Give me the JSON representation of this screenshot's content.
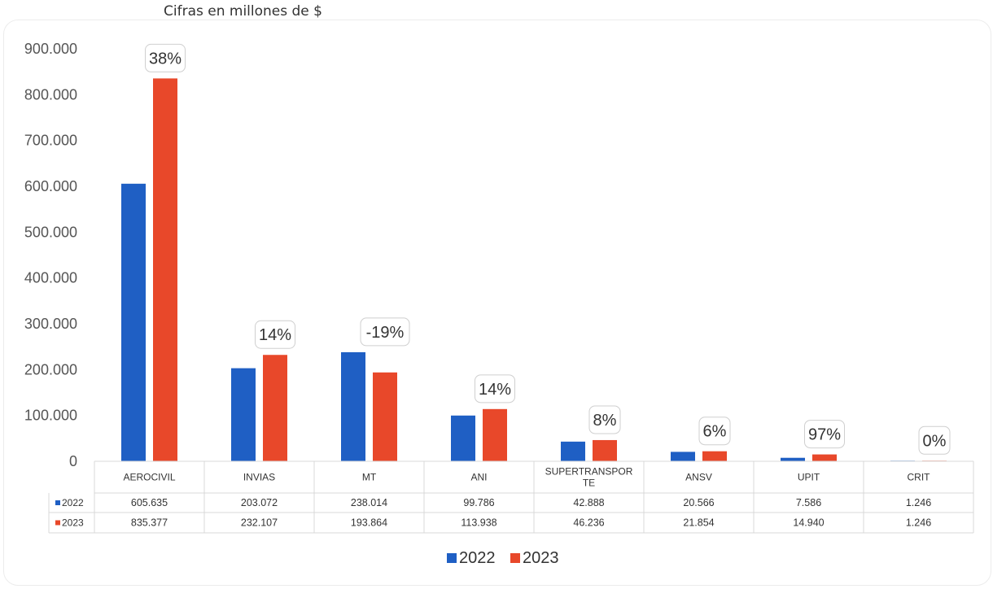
{
  "chart_data": {
    "type": "bar",
    "subtitle": "Cifras en millones de $",
    "categories": [
      "AEROCIVIL",
      "INVIAS",
      "MT",
      "ANI",
      "SUPERTRANSPORTE",
      "ANSV",
      "UPIT",
      "CRIT"
    ],
    "category_lines": [
      [
        "AEROCIVIL"
      ],
      [
        "INVIAS"
      ],
      [
        "MT"
      ],
      [
        "ANI"
      ],
      [
        "SUPERTRANSPOR",
        "TE"
      ],
      [
        "ANSV"
      ],
      [
        "UPIT"
      ],
      [
        "CRIT"
      ]
    ],
    "series": [
      {
        "name": "2022",
        "color": "#1f5fc4",
        "values": [
          605635,
          203072,
          238014,
          99786,
          42888,
          20566,
          7586,
          1246
        ],
        "labels": [
          "605.635",
          "203.072",
          "238.014",
          "99.786",
          "42.888",
          "20.566",
          "7.586",
          "1.246"
        ]
      },
      {
        "name": "2023",
        "color": "#e8482a",
        "values": [
          835377,
          232107,
          193864,
          113938,
          46236,
          21854,
          14940,
          1246
        ],
        "labels": [
          "835.377",
          "232.107",
          "193.864",
          "113.938",
          "46.236",
          "21.854",
          "14.940",
          "1.246"
        ]
      }
    ],
    "change_labels": [
      "38%",
      "14%",
      "-19%",
      "14%",
      "8%",
      "6%",
      "97%",
      "0%"
    ],
    "ylim": [
      0,
      900000
    ],
    "yticks": [
      {
        "value": 0,
        "label": "0"
      },
      {
        "value": 100000,
        "label": "100.000"
      },
      {
        "value": 200000,
        "label": "200.000"
      },
      {
        "value": 300000,
        "label": "300.000"
      },
      {
        "value": 400000,
        "label": "400.000"
      },
      {
        "value": 500000,
        "label": "500.000"
      },
      {
        "value": 600000,
        "label": "600.000"
      },
      {
        "value": 700000,
        "label": "700.000"
      },
      {
        "value": 800000,
        "label": "800.000"
      },
      {
        "value": 900000,
        "label": "900.000"
      }
    ],
    "grid": false,
    "legend": "bottom-center",
    "data_table": true
  }
}
